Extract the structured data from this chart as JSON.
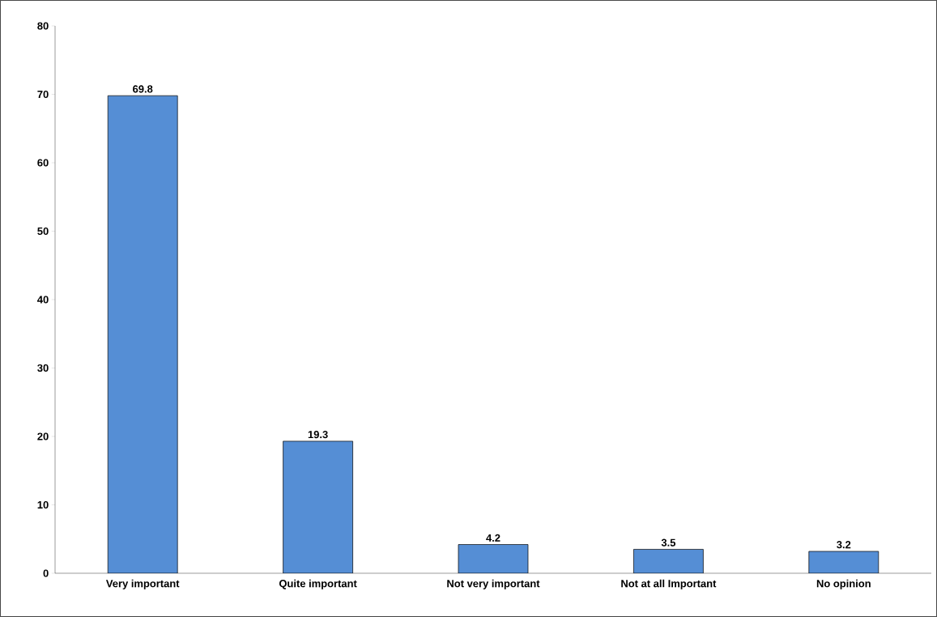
{
  "chart_data": {
    "type": "bar",
    "categories": [
      "Very important",
      "Quite important",
      "Not very important",
      "Not at all Important",
      "No opinion"
    ],
    "values": [
      69.8,
      19.3,
      4.2,
      3.5,
      3.2
    ],
    "color": "#558ed5",
    "ylim": [
      0,
      80
    ],
    "yticks": [
      0,
      10,
      20,
      30,
      40,
      50,
      60,
      70,
      80
    ],
    "data_labels": true
  }
}
